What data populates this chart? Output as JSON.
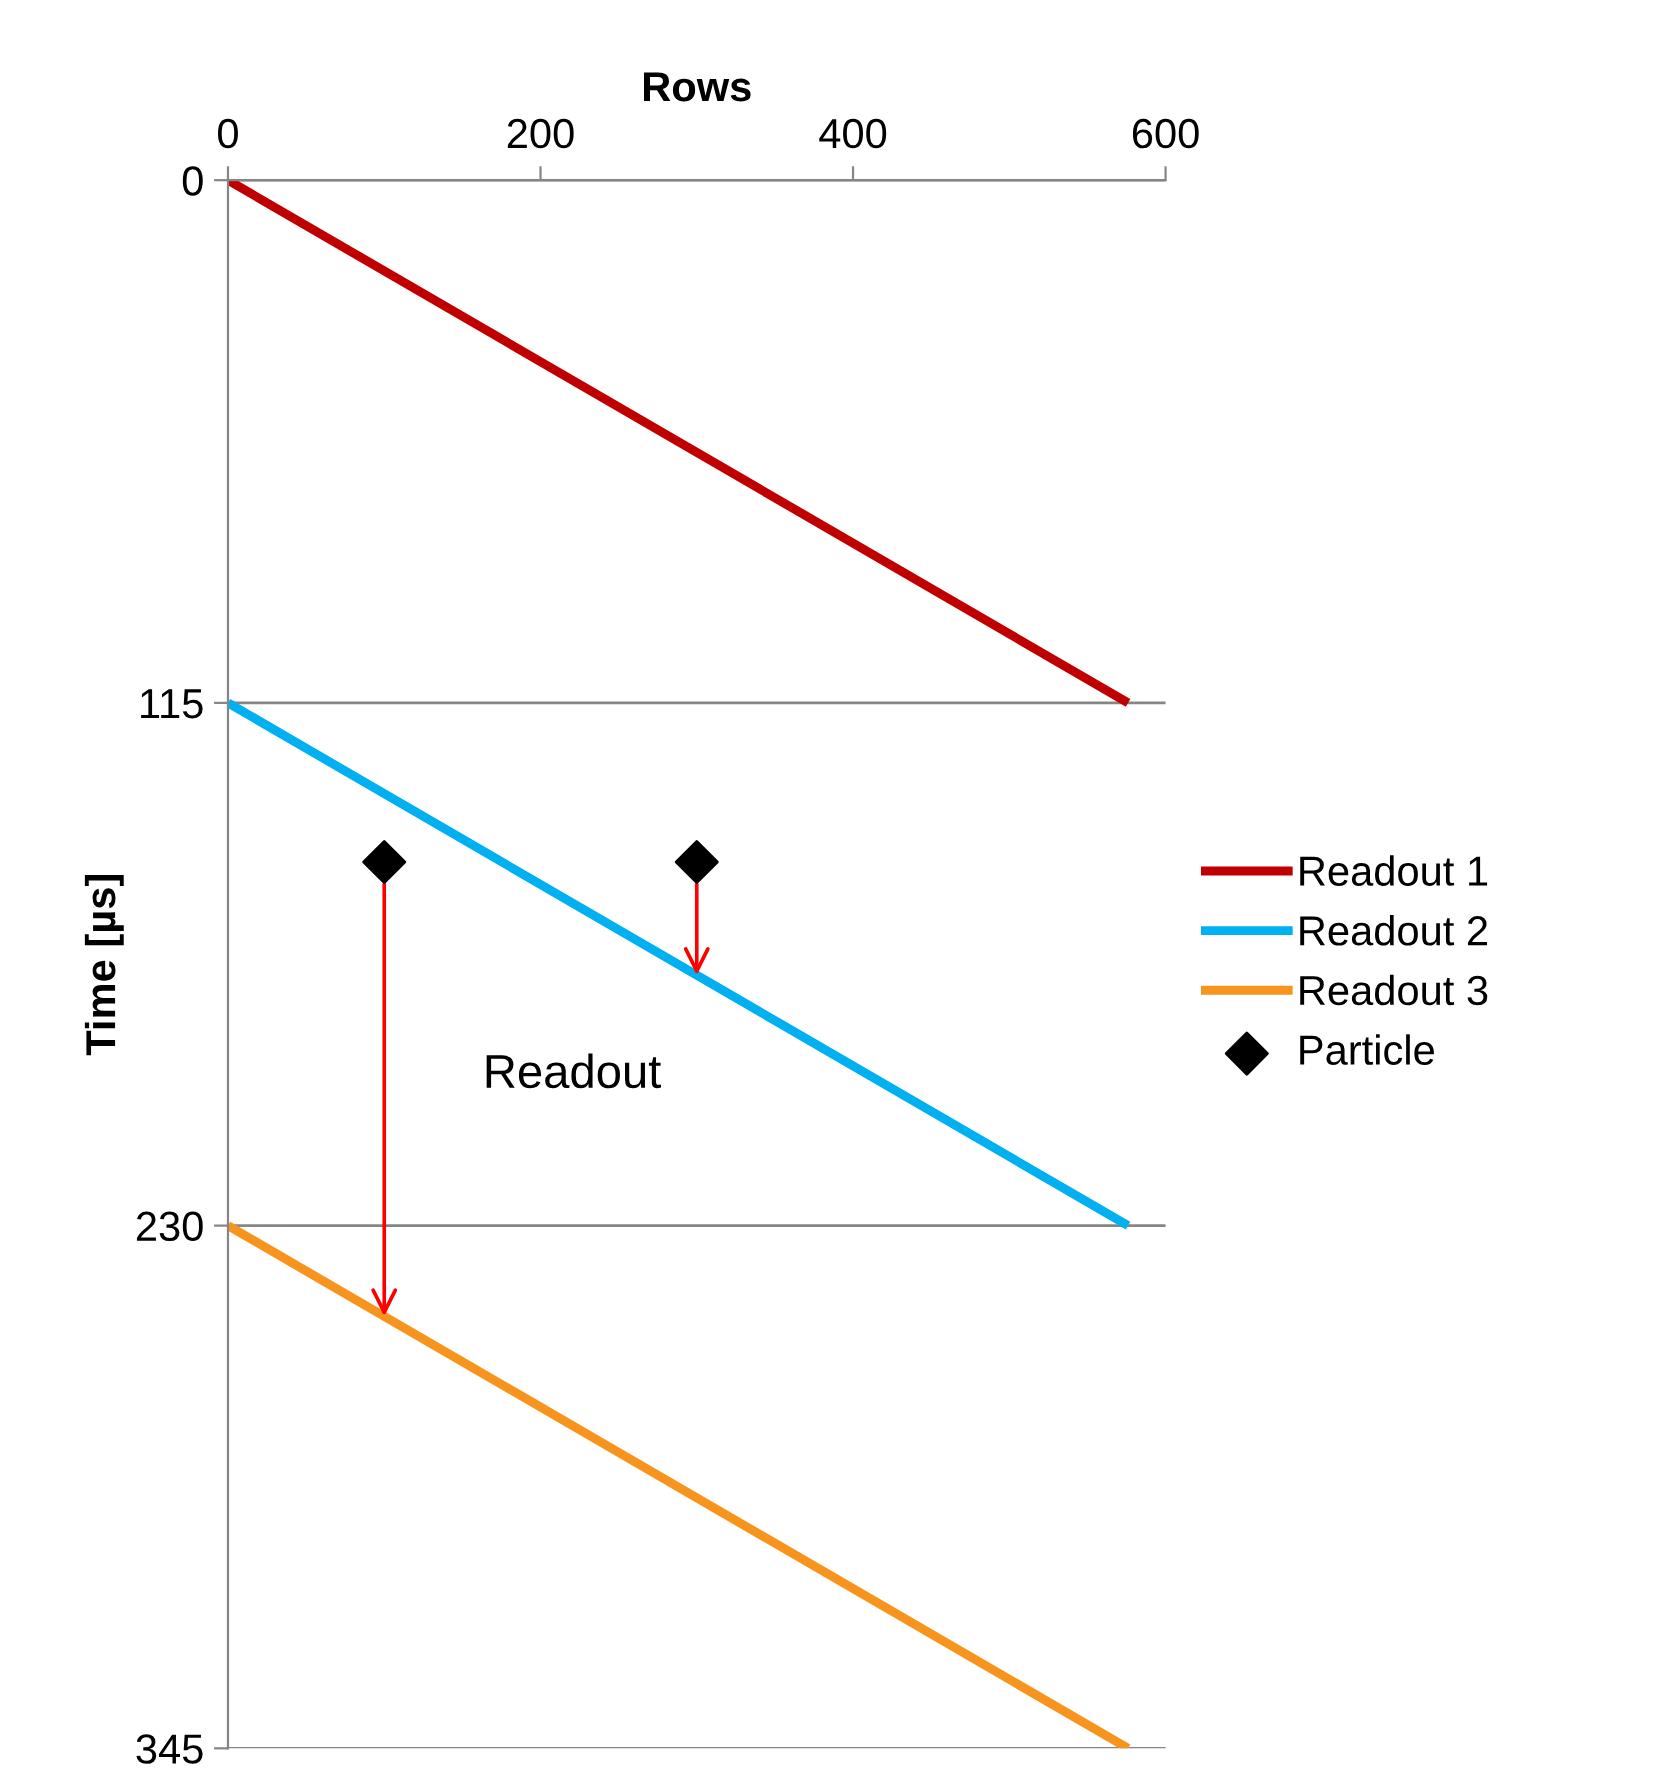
{
  "chart_data": {
    "type": "line",
    "xlabel": "Rows",
    "ylabel": "Time [µs]",
    "xlim": [
      0,
      600
    ],
    "xticks": [
      0,
      200,
      400,
      600
    ],
    "ylim": [
      345,
      0
    ],
    "yticks": [
      0,
      115,
      230,
      345
    ],
    "grid": "y",
    "legend": "right",
    "marker": "none",
    "line_style": "solid",
    "series": [
      {
        "name": "Readout 1",
        "color": "#c00000",
        "x": [
          0,
          576
        ],
        "values": [
          0,
          115
        ]
      },
      {
        "name": "Readout 2",
        "color": "#00b0f0",
        "x": [
          0,
          576
        ],
        "values": [
          115,
          230
        ]
      },
      {
        "name": "Readout 3",
        "color": "#f7941d",
        "x": [
          0,
          576
        ],
        "values": [
          230,
          345
        ]
      },
      {
        "name": "Particle",
        "type": "scatter",
        "marker": "diamond",
        "color": "#000000",
        "x": [
          100,
          300
        ],
        "values": [
          150,
          150
        ]
      }
    ],
    "annotations": [
      "Readout"
    ]
  }
}
